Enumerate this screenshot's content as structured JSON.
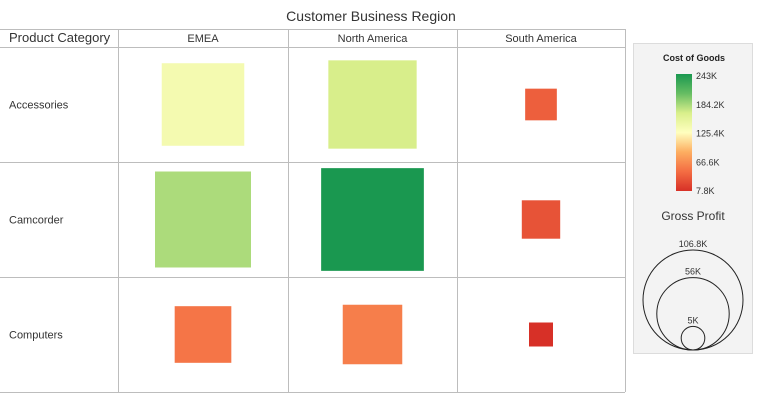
{
  "chart_data": {
    "type": "heatmap",
    "subtype": "matrix of sized and colored squares",
    "title": "Customer Business Region",
    "row_dimension_label": "Product Category",
    "columns": [
      "EMEA",
      "North America",
      "South America"
    ],
    "rows": [
      "Accessories",
      "Camcorder",
      "Computers"
    ],
    "color_measure": {
      "name": "Cost of Goods",
      "min": 7800,
      "max": 243000,
      "ticks": [
        "243K",
        "184.2K",
        "125.4K",
        "66.6K",
        "7.8K"
      ],
      "gradient": [
        "#1a9850",
        "#66bd63",
        "#d9ef8b",
        "#ffffbf",
        "#fdae61",
        "#f46d43",
        "#d73027"
      ]
    },
    "size_measure": {
      "name": "Gross Profit",
      "max": 106800,
      "ticks": [
        "106.8K",
        "56K",
        "5K"
      ],
      "tick_values": [
        106800,
        56000,
        5000
      ]
    },
    "cells": [
      {
        "row": "Accessories",
        "column": "EMEA",
        "size": 0.86,
        "color_value": 137000
      },
      {
        "row": "Accessories",
        "column": "North America",
        "size": 0.92,
        "color_value": 165000
      },
      {
        "row": "Accessories",
        "column": "South America",
        "size": 0.33,
        "color_value": 38000
      },
      {
        "row": "Camcorder",
        "column": "EMEA",
        "size": 1.0,
        "color_value": 180000
      },
      {
        "row": "Camcorder",
        "column": "North America",
        "size": 1.07,
        "color_value": 243000
      },
      {
        "row": "Camcorder",
        "column": "South America",
        "size": 0.4,
        "color_value": 30000
      },
      {
        "row": "Computers",
        "column": "EMEA",
        "size": 0.59,
        "color_value": 52000
      },
      {
        "row": "Computers",
        "column": "North America",
        "size": 0.62,
        "color_value": 57000
      },
      {
        "row": "Computers",
        "column": "South America",
        "size": 0.25,
        "color_value": 7800
      }
    ]
  }
}
